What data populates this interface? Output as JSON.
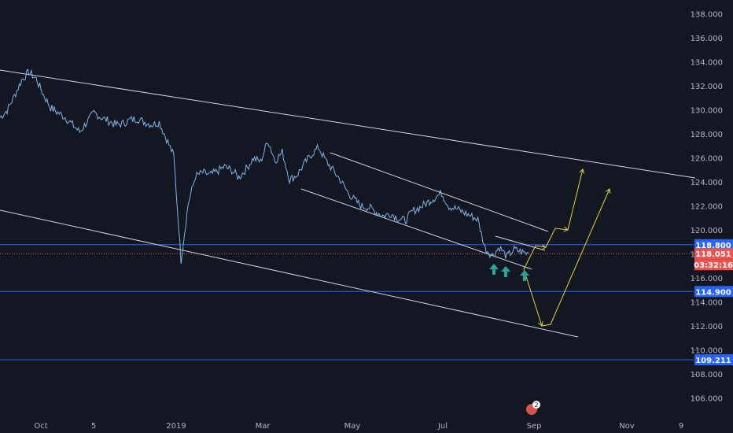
{
  "colors": {
    "background": "#131722",
    "axis_text": "#b2b5be",
    "price_line": "#7fb3e8",
    "channel_line": "#d1d4dc",
    "level_line": "#2962ff",
    "projection": "#e6d23a",
    "arrow_marker": "#26a69a",
    "current_price_bg": "#ef5350",
    "level_badge_bg": "#2962ff",
    "current_line": "#ef5350"
  },
  "icons": {
    "notification": "bell-badge-icon",
    "up_arrow": "arrow-up-icon"
  },
  "notification_count": "2",
  "chart_data": {
    "type": "line",
    "title": "",
    "xlabel": "",
    "ylabel": "",
    "ylim": [
      105.0,
      139.0
    ],
    "x_ticks": [
      "Oct",
      "5",
      "2019",
      "Mar",
      "May",
      "Jul",
      "Sep",
      "Nov",
      "9"
    ],
    "y_ticks": [
      "106.000",
      "108.000",
      "110.000",
      "112.000",
      "114.000",
      "116.000",
      "118.000",
      "120.000",
      "122.000",
      "124.000",
      "126.000",
      "128.000",
      "130.000",
      "132.000",
      "134.000",
      "136.000",
      "138.000"
    ],
    "series": [
      {
        "values": [
          129.4,
          130.0,
          131.2,
          132.5,
          133.2,
          132.6,
          131.3,
          130.2,
          129.8,
          129.4,
          128.8,
          128.2,
          129.0,
          129.8,
          129.4,
          129.1,
          128.8,
          128.9,
          129.2,
          129.3,
          129.0,
          128.8,
          129.0,
          127.6,
          126.2,
          117.5,
          122.2,
          124.5,
          124.8,
          124.6,
          124.9,
          125.3,
          125.0,
          124.4,
          125.1,
          126.0,
          125.7,
          127.5,
          125.8,
          126.5,
          124.2,
          124.6,
          125.5,
          126.3,
          126.9,
          125.8,
          125.0,
          124.2,
          123.2,
          122.5,
          122.0,
          121.9,
          121.5,
          121.2,
          121.4,
          121.0,
          120.8,
          121.6,
          121.9,
          122.3,
          122.7,
          123.1,
          122.0,
          121.8,
          121.5,
          121.2,
          120.9,
          118.5,
          117.9,
          118.6,
          117.8,
          118.4,
          118.2,
          118.05
        ]
      }
    ],
    "levels": [
      {
        "label": "118.800",
        "value": 118.8
      },
      {
        "label": "114.900",
        "value": 114.9
      },
      {
        "label": "109.211",
        "value": 109.211
      }
    ],
    "current_price": {
      "label": "118.051",
      "value": 118.051,
      "countdown": "03:32:16"
    },
    "annotations": {
      "channel_lines": 5,
      "projection_paths": 2,
      "support_arrows": 3
    }
  }
}
